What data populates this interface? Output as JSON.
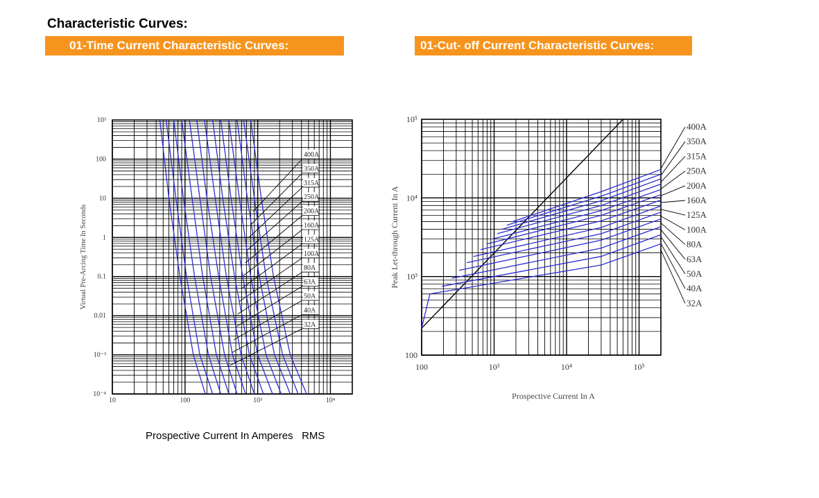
{
  "page": {
    "title": "Characteristic Curves:",
    "banner_left": "01-Time Current Characteristic Curves:",
    "banner_right": "01-Cut- off Current Characteristic Curves:",
    "bottom_caption": "Prospective Current In Amperes   RMS"
  },
  "colors": {
    "banner": "#f7941d",
    "curve": "#2b2bd6",
    "grid": "#000000"
  },
  "chart_data": [
    {
      "type": "line",
      "title": "",
      "xlabel": "",
      "ylabel": "Virtual Pre-Arcing Time In Seconds",
      "x_scale": "log",
      "y_scale": "log",
      "xlim": [
        10,
        20000
      ],
      "ylim": [
        0.0001,
        1000
      ],
      "grid": true,
      "xticks": [
        {
          "value": 10,
          "label": "10"
        },
        {
          "value": 100,
          "label": "100"
        },
        {
          "value": 1000,
          "label": "10³"
        },
        {
          "value": 10000,
          "label": "10⁴"
        }
      ],
      "yticks": [
        {
          "value": 1000,
          "label": "10³"
        },
        {
          "value": 100,
          "label": "100"
        },
        {
          "value": 10,
          "label": "10"
        },
        {
          "value": 1,
          "label": "1"
        },
        {
          "value": 0.1,
          "label": "0.1"
        },
        {
          "value": 0.01,
          "label": "0.01"
        },
        {
          "value": 0.001,
          "label": "10⁻³"
        },
        {
          "value": 0.0001,
          "label": "10⁻⁴"
        }
      ],
      "legend": [
        "400A",
        "350A",
        "315A",
        "250A",
        "200A",
        "160A",
        "125A",
        "100A",
        "80A",
        "63A",
        "50A",
        "40A",
        "32A"
      ],
      "series": [
        {
          "name": "32A",
          "points": [
            [
              45,
              1000
            ],
            [
              60,
              10
            ],
            [
              85,
              0.1
            ],
            [
              130,
              0.001
            ],
            [
              190,
              0.0001
            ]
          ]
        },
        {
          "name": "40A",
          "points": [
            [
              55,
              1000
            ],
            [
              75,
              10
            ],
            [
              105,
              0.1
            ],
            [
              160,
              0.001
            ],
            [
              240,
              0.0001
            ]
          ]
        },
        {
          "name": "50A",
          "points": [
            [
              70,
              1000
            ],
            [
              95,
              10
            ],
            [
              135,
              0.1
            ],
            [
              210,
              0.001
            ],
            [
              310,
              0.0001
            ]
          ]
        },
        {
          "name": "63A",
          "points": [
            [
              90,
              1000
            ],
            [
              125,
              10
            ],
            [
              175,
              0.1
            ],
            [
              270,
              0.001
            ],
            [
              400,
              0.0001
            ]
          ]
        },
        {
          "name": "80A",
          "points": [
            [
              115,
              1000
            ],
            [
              160,
              10
            ],
            [
              225,
              0.1
            ],
            [
              350,
              0.001
            ],
            [
              520,
              0.0001
            ]
          ]
        },
        {
          "name": "100A",
          "points": [
            [
              145,
              1000
            ],
            [
              200,
              10
            ],
            [
              290,
              0.1
            ],
            [
              450,
              0.001
            ],
            [
              680,
              0.0001
            ]
          ]
        },
        {
          "name": "125A",
          "points": [
            [
              185,
              1000
            ],
            [
              260,
              10
            ],
            [
              370,
              0.1
            ],
            [
              590,
              0.001
            ],
            [
              900,
              0.0001
            ]
          ]
        },
        {
          "name": "160A",
          "points": [
            [
              240,
              1000
            ],
            [
              330,
              10
            ],
            [
              480,
              0.1
            ],
            [
              770,
              0.001
            ],
            [
              1200,
              0.0001
            ]
          ]
        },
        {
          "name": "200A",
          "points": [
            [
              310,
              1000
            ],
            [
              430,
              10
            ],
            [
              620,
              0.1
            ],
            [
              1000,
              0.001
            ],
            [
              1600,
              0.0001
            ]
          ]
        },
        {
          "name": "250A",
          "points": [
            [
              400,
              1000
            ],
            [
              560,
              10
            ],
            [
              800,
              0.1
            ],
            [
              1300,
              0.001
            ],
            [
              2100,
              0.0001
            ]
          ]
        },
        {
          "name": "315A",
          "points": [
            [
              520,
              1000
            ],
            [
              720,
              10
            ],
            [
              1050,
              0.1
            ],
            [
              1700,
              0.001
            ],
            [
              2800,
              0.0001
            ]
          ]
        },
        {
          "name": "350A",
          "points": [
            [
              640,
              1000
            ],
            [
              900,
              10
            ],
            [
              1300,
              0.1
            ],
            [
              2200,
              0.001
            ],
            [
              3600,
              0.0001
            ]
          ]
        },
        {
          "name": "400A",
          "points": [
            [
              800,
              1000
            ],
            [
              1120,
              10
            ],
            [
              1650,
              0.1
            ],
            [
              2800,
              0.001
            ],
            [
              4700,
              0.0001
            ]
          ]
        }
      ]
    },
    {
      "type": "line",
      "title": "",
      "xlabel": "Prospective Current In A",
      "ylabel": "Peak Let-through Current In A",
      "x_scale": "log",
      "y_scale": "log",
      "xlim": [
        100,
        200000
      ],
      "ylim": [
        100,
        100000
      ],
      "grid": true,
      "xticks": [
        {
          "value": 100,
          "label": "100"
        },
        {
          "value": 1000,
          "label": "10³"
        },
        {
          "value": 10000,
          "label": "10⁴"
        },
        {
          "value": 100000,
          "label": "10⁵"
        }
      ],
      "yticks": [
        {
          "value": 100000,
          "label": "10⁵"
        },
        {
          "value": 10000,
          "label": "10⁴"
        },
        {
          "value": 1000,
          "label": "10³"
        },
        {
          "value": 100,
          "label": "100"
        }
      ],
      "legend": [
        "400A",
        "350A",
        "315A",
        "250A",
        "200A",
        "160A",
        "125A",
        "100A",
        "80A",
        "63A",
        "50A",
        "40A",
        "32A"
      ],
      "reference_line": {
        "points": [
          [
            100,
            220
          ],
          [
            60000,
            100000
          ]
        ]
      },
      "series": [
        {
          "name": "400A",
          "points": [
            [
              1800,
              5000
            ],
            [
              30000,
              12000
            ],
            [
              200000,
              23000
            ]
          ]
        },
        {
          "name": "350A",
          "points": [
            [
              1500,
              4500
            ],
            [
              30000,
              10500
            ],
            [
              200000,
              20000
            ]
          ]
        },
        {
          "name": "315A",
          "points": [
            [
              1300,
              4000
            ],
            [
              30000,
              9200
            ],
            [
              200000,
              17500
            ]
          ]
        },
        {
          "name": "250A",
          "points": [
            [
              1100,
              3500
            ],
            [
              30000,
              8000
            ],
            [
              200000,
              15000
            ]
          ]
        },
        {
          "name": "200A",
          "points": [
            [
              950,
              3000
            ],
            [
              30000,
              6900
            ],
            [
              200000,
              12800
            ]
          ]
        },
        {
          "name": "160A",
          "points": [
            [
              800,
              2600
            ],
            [
              30000,
              6000
            ],
            [
              200000,
              11000
            ]
          ]
        },
        {
          "name": "125A",
          "points": [
            [
              650,
              2200
            ],
            [
              30000,
              5100
            ],
            [
              200000,
              9400
            ]
          ]
        },
        {
          "name": "100A",
          "points": [
            [
              520,
              1800
            ],
            [
              30000,
              4200
            ],
            [
              200000,
              7900
            ]
          ]
        },
        {
          "name": "80A",
          "points": [
            [
              420,
              1500
            ],
            [
              30000,
              3500
            ],
            [
              200000,
              6600
            ]
          ]
        },
        {
          "name": "63A",
          "points": [
            [
              330,
              1200
            ],
            [
              30000,
              2900
            ],
            [
              200000,
              5400
            ]
          ]
        },
        {
          "name": "50A",
          "points": [
            [
              260,
              950
            ],
            [
              30000,
              2300
            ],
            [
              200000,
              4300
            ]
          ]
        },
        {
          "name": "40A",
          "points": [
            [
              190,
              750
            ],
            [
              30000,
              1800
            ],
            [
              200000,
              3400
            ]
          ]
        },
        {
          "name": "32A",
          "points": [
            [
              100,
              220
            ],
            [
              130,
              600
            ],
            [
              30000,
              1400
            ],
            [
              200000,
              2600
            ]
          ]
        }
      ]
    }
  ]
}
